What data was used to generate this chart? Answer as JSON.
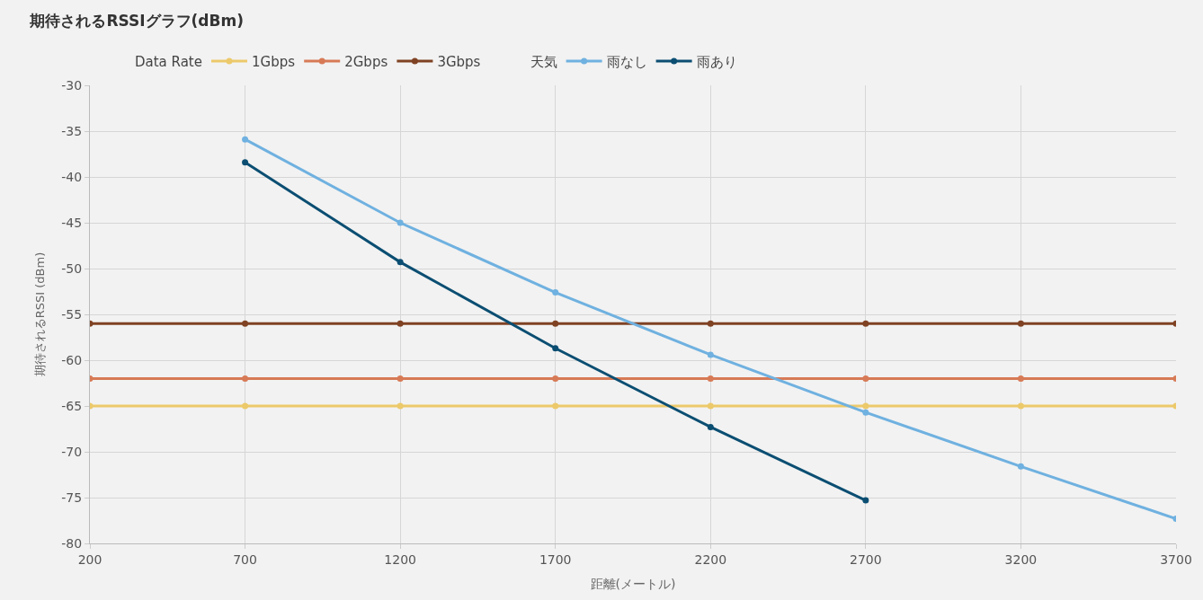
{
  "chart_data": {
    "type": "line",
    "title": "期待されるRSSIグラフ(dBm)",
    "xlabel": "距離(メートル)",
    "ylabel": "期待されるRSSI (dBm)",
    "legend_title": [
      "Data Rate",
      "天気"
    ],
    "x": [
      200,
      700,
      1200,
      1700,
      2200,
      2700,
      3200,
      3700
    ],
    "series": [
      {
        "name": "1Gbps",
        "color": "#ecc96a",
        "values": [
          -65,
          -65,
          -65,
          -65,
          -65,
          -65,
          -65,
          -65
        ]
      },
      {
        "name": "2Gbps",
        "color": "#d77a56",
        "values": [
          -62,
          -62,
          -62,
          -62,
          -62,
          -62,
          -62,
          -62
        ]
      },
      {
        "name": "3Gbps",
        "color": "#7f4223",
        "values": [
          -56,
          -56,
          -56,
          -56,
          -56,
          -56,
          -56,
          -56
        ]
      },
      {
        "name": "雨なし",
        "color": "#6fb1e0",
        "values": [
          null,
          -35.9,
          -45.0,
          -52.6,
          -59.4,
          -65.7,
          -71.6,
          -77.3
        ]
      },
      {
        "name": "雨あり",
        "color": "#0b4e72",
        "values": [
          null,
          -38.4,
          -49.3,
          -58.7,
          -67.3,
          -75.3,
          null,
          null
        ]
      }
    ],
    "xlim": [
      200,
      3700
    ],
    "xticks": [
      200,
      700,
      1200,
      1700,
      2200,
      2700,
      3200,
      3700
    ],
    "ylim": [
      -80,
      -30
    ],
    "yticks": [
      -80,
      -75,
      -70,
      -65,
      -60,
      -55,
      -50,
      -45,
      -40,
      -35,
      -30
    ],
    "grid": true,
    "legend": "top",
    "marker": "circle",
    "line_style": "solid"
  }
}
